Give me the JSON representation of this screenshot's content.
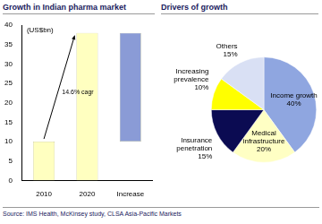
{
  "chart_data": [
    {
      "type": "waterfall",
      "title": "Growth in Indian pharma market",
      "y_label": "(US$bn)",
      "annotation": "14.6% cagr",
      "categories": [
        "2010",
        "2020",
        "Increase"
      ],
      "values": [
        10,
        38,
        28
      ],
      "colors": [
        "#ffffc0",
        "#ffffc0",
        "#8a9bd6"
      ],
      "ylim": [
        0,
        40
      ],
      "yticks": [
        0,
        5,
        10,
        15,
        20,
        25,
        30,
        35,
        40
      ],
      "grid": false
    },
    {
      "type": "pie",
      "title": "Drivers of growth",
      "categories": [
        "Income growth",
        "Medical infrastructure",
        "Insurance penetration",
        "Increasing prevalence",
        "Others"
      ],
      "values": [
        40,
        20,
        15,
        10,
        15
      ],
      "value_labels": [
        "40%",
        "20%",
        "15%",
        "10%",
        "15%"
      ],
      "data_labels": true,
      "colors": [
        "#8fa6e0",
        "#ffffc4",
        "#0b0b52",
        "#ffff00",
        "#d9e0f4"
      ]
    }
  ],
  "source": "Source: IMS Health, McKinsey study, CLSA Asia-Pacific Markets"
}
